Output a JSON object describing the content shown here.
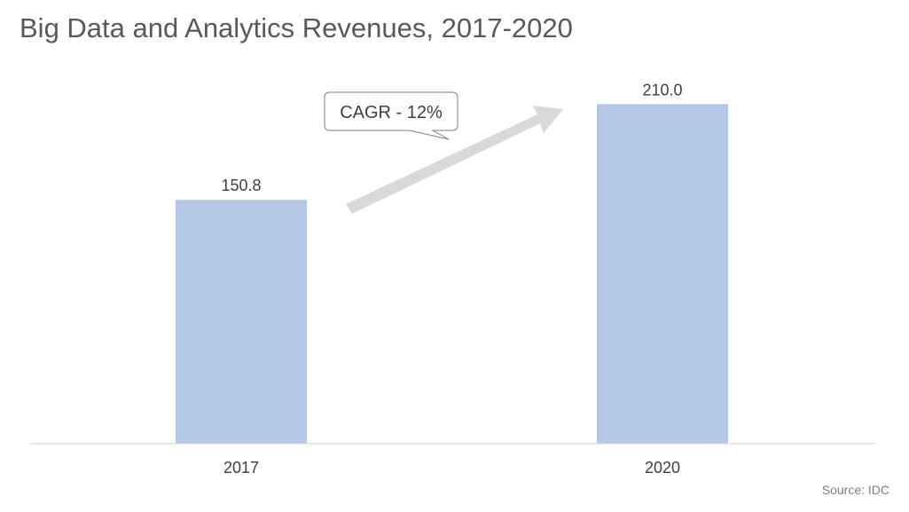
{
  "title": "Big Data and Analytics Revenues, 2017-2020",
  "source": "Source: IDC",
  "annotation": "CAGR - 12%",
  "colors": {
    "bar": "#b4c7e7",
    "axis": "#d9d9d9",
    "arrow": "#d9d9d9",
    "text": "#404040"
  },
  "chart_data": {
    "type": "bar",
    "categories": [
      "2017",
      "2020"
    ],
    "values": [
      150.8,
      210.0
    ],
    "data_labels": [
      "150.8",
      "210.0"
    ],
    "title": "Big Data and Analytics Revenues, 2017-2020",
    "xlabel": "",
    "ylabel": "",
    "ylim": [
      0,
      225
    ],
    "grid": false,
    "legend": "none"
  }
}
